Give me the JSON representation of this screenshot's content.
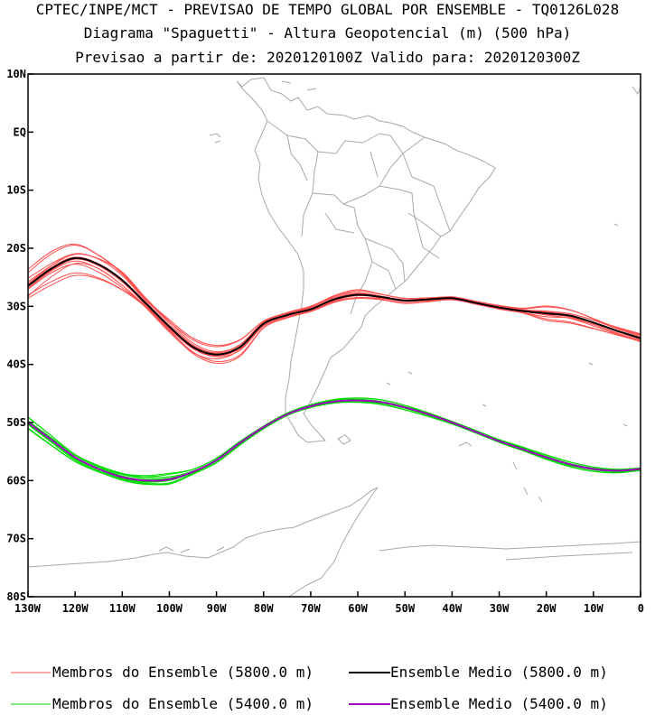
{
  "title_lines": [
    "CPTEC/INPE/MCT - PREVISAO DE TEMPO GLOBAL POR ENSEMBLE - TQ0126L028",
    "Diagrama \"Spaguetti\" - Altura Geopotencial (m) (500 hPa)",
    "Previsao a partir de: 2020120100Z  Valido para: 2020120300Z"
  ],
  "colors": {
    "member_5800": "#ff5050",
    "mean_5800": "#000000",
    "member_5400": "#00dd00",
    "mean_5400": "#a000c0",
    "coast": "#a8a8a8",
    "axes": "#000000"
  },
  "axes": {
    "lon_range": [
      -130,
      0
    ],
    "lat_range": [
      -80,
      10
    ],
    "lat_ticks": [
      {
        "value": 10,
        "label": "10N"
      },
      {
        "value": 0,
        "label": "EQ"
      },
      {
        "value": -10,
        "label": "10S"
      },
      {
        "value": -20,
        "label": "20S"
      },
      {
        "value": -30,
        "label": "30S"
      },
      {
        "value": -40,
        "label": "40S"
      },
      {
        "value": -50,
        "label": "50S"
      },
      {
        "value": -60,
        "label": "60S"
      },
      {
        "value": -70,
        "label": "70S"
      },
      {
        "value": -80,
        "label": "80S"
      }
    ],
    "lon_ticks": [
      {
        "value": -130,
        "label": "130W"
      },
      {
        "value": -120,
        "label": "120W"
      },
      {
        "value": -110,
        "label": "110W"
      },
      {
        "value": -100,
        "label": "100W"
      },
      {
        "value": -90,
        "label": "90W"
      },
      {
        "value": -80,
        "label": "80W"
      },
      {
        "value": -70,
        "label": "70W"
      },
      {
        "value": -60,
        "label": "60W"
      },
      {
        "value": -50,
        "label": "50W"
      },
      {
        "value": -40,
        "label": "40W"
      },
      {
        "value": -30,
        "label": "30W"
      },
      {
        "value": -20,
        "label": "20W"
      },
      {
        "value": -10,
        "label": "10W"
      },
      {
        "value": 0,
        "label": "0"
      }
    ]
  },
  "contours": {
    "mean_5800": [
      [
        -130,
        -26.5
      ],
      [
        -125,
        -23.5
      ],
      [
        -120,
        -21.7
      ],
      [
        -115,
        -22.8
      ],
      [
        -110,
        -25.5
      ],
      [
        -105,
        -29.5
      ],
      [
        -100,
        -33.5
      ],
      [
        -95,
        -37
      ],
      [
        -90,
        -38.3
      ],
      [
        -85,
        -37
      ],
      [
        -80,
        -33
      ],
      [
        -75,
        -31.5
      ],
      [
        -70,
        -30.5
      ],
      [
        -65,
        -28.8
      ],
      [
        -60,
        -28
      ],
      [
        -55,
        -28.4
      ],
      [
        -50,
        -29
      ],
      [
        -45,
        -28.8
      ],
      [
        -40,
        -28.6
      ],
      [
        -35,
        -29.4
      ],
      [
        -30,
        -30.2
      ],
      [
        -25,
        -30.8
      ],
      [
        -20,
        -31.2
      ],
      [
        -15,
        -31.6
      ],
      [
        -10,
        -32.8
      ],
      [
        -5,
        -34.2
      ],
      [
        0,
        -35.5
      ]
    ],
    "mean_5400": [
      [
        -130,
        -50
      ],
      [
        -125,
        -53
      ],
      [
        -120,
        -56
      ],
      [
        -115,
        -58
      ],
      [
        -110,
        -59.4
      ],
      [
        -105,
        -60
      ],
      [
        -100,
        -59.8
      ],
      [
        -95,
        -58.5
      ],
      [
        -90,
        -56.5
      ],
      [
        -85,
        -53.5
      ],
      [
        -80,
        -50.8
      ],
      [
        -75,
        -48.6
      ],
      [
        -70,
        -47.2
      ],
      [
        -65,
        -46.4
      ],
      [
        -60,
        -46.2
      ],
      [
        -55,
        -46.5
      ],
      [
        -50,
        -47.4
      ],
      [
        -45,
        -48.6
      ],
      [
        -40,
        -50
      ],
      [
        -35,
        -51.6
      ],
      [
        -30,
        -53.2
      ],
      [
        -25,
        -54.6
      ],
      [
        -20,
        -56
      ],
      [
        -15,
        -57.2
      ],
      [
        -10,
        -58
      ],
      [
        -5,
        -58.3
      ],
      [
        0,
        -58
      ]
    ]
  },
  "legend": {
    "members_5800": "Membros do Ensemble (5800.0 m)",
    "mean_5800": "Ensemble Medio (5800.0 m)",
    "members_5400": "Membros do Ensemble (5400.0 m)",
    "mean_5400": "Ensemble Medio (5400.0 m)"
  }
}
